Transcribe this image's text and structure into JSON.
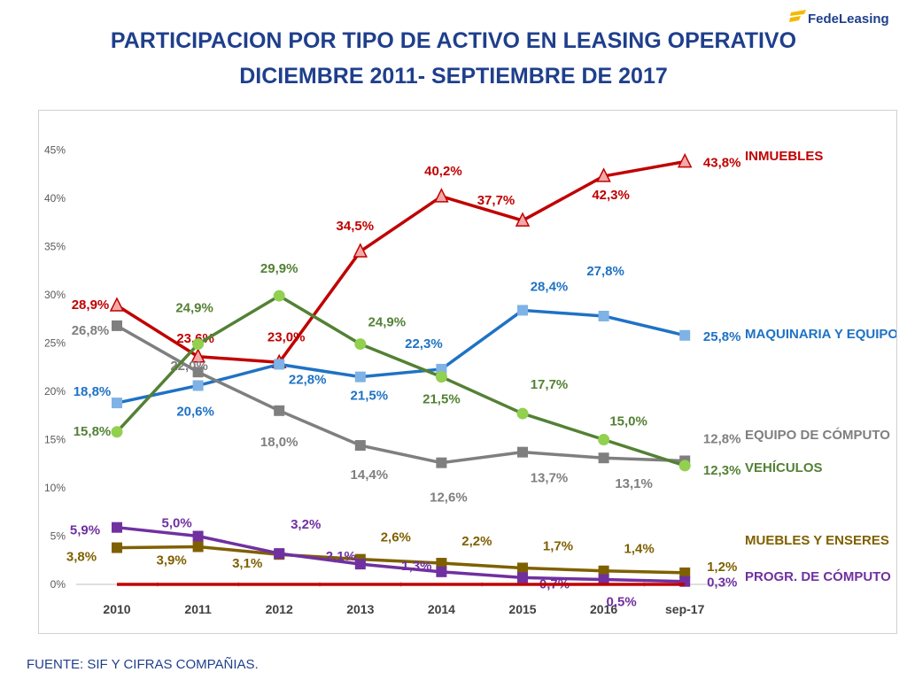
{
  "logo": {
    "text": "FedeLeasing"
  },
  "title": {
    "line1": "PARTICIPACION POR TIPO DE ACTIVO EN  LEASING OPERATIVO",
    "line2": "DICIEMBRE 2011- SEPTIEMBRE DE 2017"
  },
  "source": "FUENTE: SIF Y CIFRAS COMPAÑIAS.",
  "chart_data": {
    "type": "line",
    "categories": [
      "2010",
      "2011",
      "2012",
      "2013",
      "2014",
      "2015",
      "2016",
      "sep-17"
    ],
    "yticks": [
      "0%",
      "5%",
      "10%",
      "15%",
      "20%",
      "25%",
      "30%",
      "35%",
      "40%",
      "45%"
    ],
    "ylim": [
      0,
      45
    ],
    "series": [
      {
        "name": "INMUEBLES",
        "color": "#c00000",
        "marker": "triangle",
        "values": [
          28.9,
          23.6,
          23.0,
          34.5,
          40.2,
          37.7,
          42.3,
          43.8
        ],
        "labels": [
          "28,9%",
          "23,6%",
          "23,0%",
          "34,5%",
          "40,2%",
          "37,7%",
          "42,3%",
          "43,8%"
        ]
      },
      {
        "name": "MAQUINARIA  Y EQUIPO",
        "color": "#1f72c4",
        "marker": "square",
        "values": [
          18.8,
          20.6,
          22.8,
          21.5,
          22.3,
          28.4,
          27.8,
          25.8
        ],
        "labels": [
          "18,8%",
          "20,6%",
          "22,8%",
          "21,5%",
          "22,3%",
          "28,4%",
          "27,8%",
          "25,8%"
        ]
      },
      {
        "name": "EQUIPO DE  CÓMPUTO",
        "color": "#7f7f7f",
        "marker": "square",
        "values": [
          26.8,
          22.0,
          18.0,
          14.4,
          12.6,
          13.7,
          13.1,
          12.8
        ],
        "labels": [
          "26,8%",
          "22,0%",
          "18,0%",
          "14,4%",
          "12,6%",
          "13,7%",
          "13,1%",
          "12,8%"
        ]
      },
      {
        "name": "VEHÍCULOS",
        "color": "#538135",
        "marker": "circle",
        "markerColor": "#92d050",
        "values": [
          15.8,
          24.9,
          29.9,
          24.9,
          21.5,
          17.7,
          15.0,
          12.3
        ],
        "labels": [
          "15,8%",
          "24,9%",
          "29,9%",
          "24,9%",
          "21,5%",
          "17,7%",
          "15,0%",
          "12,3%"
        ]
      },
      {
        "name": "MUEBLES Y ENSERES",
        "color": "#7f6000",
        "marker": "square",
        "values": [
          3.8,
          3.9,
          3.1,
          2.6,
          2.2,
          1.7,
          1.4,
          1.2
        ],
        "labels": [
          "3,8%",
          "3,9%",
          "3,1%",
          "2,6%",
          "2,2%",
          "1,7%",
          "1,4%",
          "1,2%"
        ]
      },
      {
        "name": "PROGR. DE CÓMPUTO",
        "color": "#7030a0",
        "marker": "square",
        "values": [
          5.9,
          5.0,
          3.2,
          2.1,
          1.3,
          0.7,
          0.5,
          0.3
        ],
        "labels": [
          "5,9%",
          "5,0%",
          "3,2%",
          "2,1%",
          "1,3%",
          "0,7%",
          "0,5%",
          "0,3%"
        ]
      },
      {
        "name": "",
        "color": "#c00000",
        "marker": "none",
        "values": [
          0,
          0,
          0,
          0,
          0,
          0,
          0,
          0
        ],
        "labels": []
      }
    ]
  }
}
